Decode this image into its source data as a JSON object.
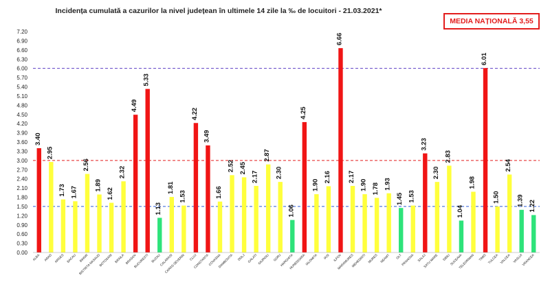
{
  "title": "Incidența cumulată a cazurilor la nivel județean în ultimele 14 zile la ‰ de locuitori - 21.03.2021*",
  "media_label": "MEDIA NAȚIONALĂ 3,55",
  "colors": {
    "red": "#f01515",
    "yellow": "#ffff3c",
    "green": "#2ee37a",
    "ref_red": "#e31b1b",
    "ref_blue": "#2a5bd7",
    "ref_purple": "#5b3cc4"
  },
  "chart_data": {
    "type": "bar",
    "title": "Incidența cumulată a cazurilor la nivel județean în ultimele 14 zile la ‰ de locuitori - 21.03.2021*",
    "categories": [
      "ALBA",
      "ARAD",
      "ARGES",
      "BACAU",
      "BIHOR",
      "BISTRITA NASAUD",
      "BOTOSANI",
      "BRAILA",
      "BRASOV",
      "BUCURESTI",
      "BUZAU",
      "CALARASI",
      "CARAS-SEVERIN",
      "CLUJ",
      "CONSTANTA",
      "COVASNA",
      "DAMBOVITA",
      "DOLJ",
      "GALATI",
      "GIURGIU",
      "GORJ",
      "HARGHITA",
      "HUNEDOARA",
      "IALOMITA",
      "IASI",
      "ILFOV",
      "MARAMURES",
      "MEHEDINTI",
      "MURES",
      "NEAMT",
      "OLT",
      "PRAHOVA",
      "SALAJ",
      "SATU MARE",
      "SIBIU",
      "SUCEAVA",
      "TELEORMAN",
      "TIMIS",
      "TULCEA",
      "VALCEA",
      "VASLUI",
      "VRANCEA"
    ],
    "values": [
      3.4,
      2.95,
      1.73,
      1.67,
      2.56,
      1.89,
      1.62,
      2.32,
      4.49,
      5.33,
      1.13,
      1.81,
      1.53,
      4.22,
      3.49,
      1.66,
      2.52,
      2.45,
      2.17,
      2.87,
      2.3,
      1.06,
      4.25,
      1.9,
      2.16,
      6.66,
      2.17,
      1.9,
      1.78,
      1.93,
      1.45,
      1.53,
      3.23,
      2.3,
      2.83,
      1.04,
      1.98,
      6.01,
      1.5,
      2.54,
      1.39,
      1.22
    ],
    "value_labels": [
      "3.40",
      "2.95",
      "1.73",
      "1.67",
      "2.56",
      "1.89",
      "1.62",
      "2.32",
      "4.49",
      "5.33",
      "1.13",
      "1.81",
      "1.53",
      "4.22",
      "3.49",
      "1.66",
      "2.52",
      "2.45",
      "2.17",
      "2.87",
      "2.30",
      "1.06",
      "4.25",
      "1.90",
      "2.16",
      "6.66",
      "2.17",
      "1.90",
      "1.78",
      "1.93",
      "1.45",
      "1.53",
      "3.23",
      "2.30",
      "2.83",
      "1.04",
      "1.98",
      "6.01",
      "1.50",
      "2.54",
      "1.39",
      "1.22"
    ],
    "bar_colors": [
      "red",
      "yellow",
      "yellow",
      "yellow",
      "yellow",
      "yellow",
      "yellow",
      "yellow",
      "red",
      "red",
      "green",
      "yellow",
      "yellow",
      "red",
      "red",
      "yellow",
      "yellow",
      "yellow",
      "yellow",
      "yellow",
      "yellow",
      "green",
      "red",
      "yellow",
      "yellow",
      "red",
      "yellow",
      "yellow",
      "yellow",
      "yellow",
      "green",
      "yellow",
      "red",
      "yellow",
      "yellow",
      "green",
      "yellow",
      "red",
      "yellow",
      "yellow",
      "green",
      "green"
    ],
    "ylim": [
      0,
      7.2
    ],
    "yticks": [
      "0.00",
      "0.30",
      "0.60",
      "0.90",
      "1.20",
      "1.50",
      "1.80",
      "2.10",
      "2.40",
      "2.70",
      "3.00",
      "3.30",
      "3.60",
      "3.90",
      "4.20",
      "4.50",
      "4.80",
      "5.10",
      "5.40",
      "5.70",
      "6.00",
      "6.30",
      "6.60",
      "6.90",
      "7.20"
    ],
    "reference_lines": [
      {
        "value": 6.0,
        "color": "purple"
      },
      {
        "value": 3.0,
        "color": "red"
      },
      {
        "value": 1.5,
        "color": "blue"
      }
    ],
    "xlabel": "",
    "ylabel": "",
    "grid": false,
    "legend": "none"
  }
}
